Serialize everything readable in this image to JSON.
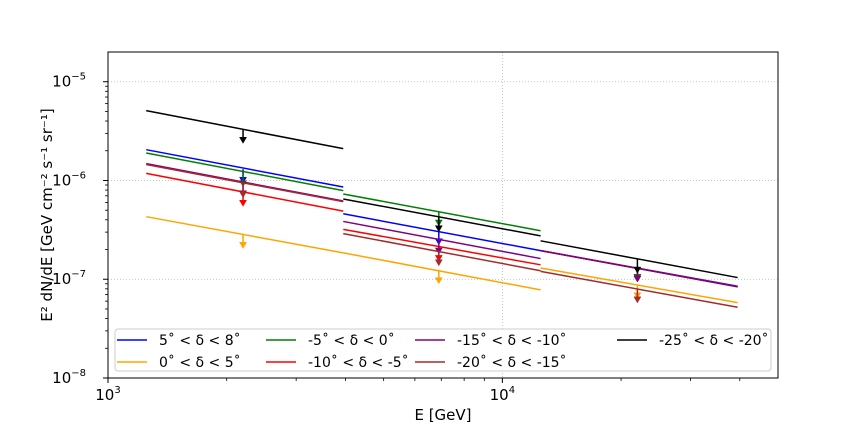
{
  "chart_data": {
    "type": "line",
    "title": "",
    "xlabel": "E [GeV]",
    "ylabel": "E² dN/dE [GeV cm⁻² s⁻¹ sr⁻¹]",
    "xscale": "log",
    "yscale": "log",
    "xlim": [
      1000,
      50000
    ],
    "ylim": [
      1e-08,
      2e-05
    ],
    "grid": true,
    "x_ticks": [
      {
        "value": 1000,
        "label_base": "10",
        "label_exp": "3"
      },
      {
        "value": 10000,
        "label_base": "10",
        "label_exp": "4"
      }
    ],
    "y_ticks": [
      {
        "value": 1e-08,
        "label_base": "10",
        "label_exp": "−8"
      },
      {
        "value": 1e-07,
        "label_base": "10",
        "label_exp": "−7"
      },
      {
        "value": 1e-06,
        "label_base": "10",
        "label_exp": "−6"
      },
      {
        "value": 1e-05,
        "label_base": "10",
        "label_exp": "−5"
      }
    ],
    "bins": [
      {
        "emin": 1250,
        "emax": 3950,
        "e_arrow": 2200
      },
      {
        "emin": 3950,
        "emax": 12500,
        "e_arrow": 6900
      },
      {
        "emin": 12500,
        "emax": 39500,
        "e_arrow": 22000
      }
    ],
    "legend_position": "bottom",
    "series": [
      {
        "name": "5˚ < δ < 8˚",
        "color": "#0000ff",
        "segments": [
          [
            2.05e-06,
            8.6e-07
          ],
          [
            4.6e-07,
            1.95e-07
          ],
          [
            1.95e-07,
            8.5e-08
          ]
        ],
        "arrows": [
          1.3e-06,
          3.1e-07,
          1.35e-07
        ]
      },
      {
        "name": "0˚ < δ < 5˚",
        "color": "#ffa500",
        "segments": [
          [
            4.3e-07,
            1.85e-07
          ],
          [
            1.85e-07,
            7.8e-08
          ],
          [
            1.3e-07,
            5.8e-08
          ]
        ],
        "arrows": [
          2.85e-07,
          1.25e-07,
          8.8e-08
        ]
      },
      {
        "name": "-5˚ < δ < 0˚",
        "color": "#008000",
        "segments": [
          [
            1.9e-06,
            7.9e-07
          ],
          [
            7.3e-07,
            3.1e-07
          ],
          [
            1.95e-07,
            8.4e-08
          ]
        ],
        "arrows": [
          1.2e-06,
          4.8e-07,
          1.35e-07
        ]
      },
      {
        "name": "-10˚ < δ < -5˚",
        "color": "#ff0000",
        "segments": [
          [
            1.18e-06,
            4.9e-07
          ],
          [
            3.2e-07,
            1.4e-07
          ],
          [
            1.95e-07,
            8.4e-08
          ]
        ],
        "arrows": [
          7.6e-07,
          2.1e-07,
          1.3e-07
        ]
      },
      {
        "name": "-15˚ < δ < -10˚",
        "color": "#800080",
        "segments": [
          [
            1.48e-06,
            6.2e-07
          ],
          [
            3.85e-07,
            1.62e-07
          ],
          [
            1.95e-07,
            8.4e-08
          ]
        ],
        "arrows": [
          9.5e-07,
          2.5e-07,
          1.3e-07
        ]
      },
      {
        "name": "-20˚ < δ < -15˚",
        "color": "#a52a2a",
        "segments": [
          [
            1.45e-06,
            6.1e-07
          ],
          [
            2.9e-07,
            1.22e-07
          ],
          [
            1.2e-07,
            5.2e-08
          ]
        ],
        "arrows": [
          9.3e-07,
          1.9e-07,
          8e-08
        ]
      },
      {
        "name": "-25˚ < δ < -20˚",
        "color": "#000000",
        "segments": [
          [
            5.1e-06,
            2.1e-06
          ],
          [
            6.5e-07,
            2.75e-07
          ],
          [
            2.45e-07,
            1.04e-07
          ]
        ],
        "arrows": [
          3.3e-06,
          4.2e-07,
          1.6e-07
        ]
      }
    ]
  }
}
